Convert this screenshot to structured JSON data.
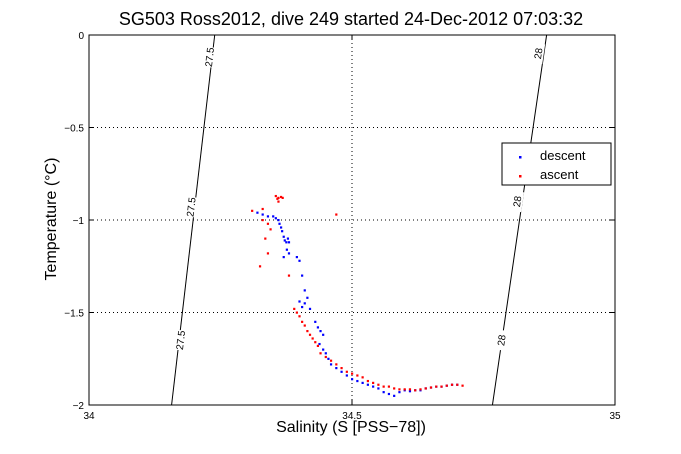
{
  "chart_data": {
    "type": "scatter",
    "title": "SG503 Ross2012, dive 249 started 24-Dec-2012 07:03:32",
    "xlabel": "Salinity (S [PSS−78])",
    "ylabel": "Temperature (°C)",
    "xlim": [
      34,
      35
    ],
    "ylim": [
      -2,
      0
    ],
    "x_ticks": [
      "34",
      "34.5",
      "35"
    ],
    "y_ticks": [
      "0",
      "−0.5",
      "−1",
      "−1.5",
      "−2"
    ],
    "x_tick_values": [
      34,
      34.5,
      35
    ],
    "y_tick_values": [
      0,
      -0.5,
      -1,
      -1.5,
      -2
    ],
    "grid": true,
    "grid_style": "dotted",
    "legend_position": "right",
    "colors": {
      "descent": "#0000ff",
      "ascent": "#ff0000",
      "contours": "#000000"
    },
    "density_contours": [
      {
        "label": "27.5",
        "points": [
          [
            34.157,
            -2
          ],
          [
            34.239,
            0
          ]
        ],
        "labels_at": [
          [
            34.175,
            -1.65
          ],
          [
            34.195,
            -0.93
          ],
          [
            34.23,
            -0.12
          ]
        ]
      },
      {
        "label": "28",
        "points": [
          [
            34.767,
            -2
          ],
          [
            34.87,
            0
          ]
        ],
        "labels_at": [
          [
            34.785,
            -1.65
          ],
          [
            34.815,
            -0.9
          ],
          [
            34.855,
            -0.1
          ]
        ]
      }
    ],
    "series": [
      {
        "name": "descent",
        "marker": "dot",
        "points": [
          [
            34.32,
            -0.96
          ],
          [
            34.33,
            -0.97
          ],
          [
            34.34,
            -0.98
          ],
          [
            34.35,
            -0.98
          ],
          [
            34.355,
            -0.99
          ],
          [
            34.36,
            -1.0
          ],
          [
            34.362,
            -1.02
          ],
          [
            34.365,
            -1.04
          ],
          [
            34.367,
            -1.06
          ],
          [
            34.37,
            -1.09
          ],
          [
            34.372,
            -1.11
          ],
          [
            34.375,
            -1.12
          ],
          [
            34.378,
            -1.1
          ],
          [
            34.38,
            -1.12
          ],
          [
            34.376,
            -1.16
          ],
          [
            34.37,
            -1.2
          ],
          [
            34.38,
            -1.18
          ],
          [
            34.395,
            -1.2
          ],
          [
            34.4,
            -1.22
          ],
          [
            34.405,
            -1.3
          ],
          [
            34.41,
            -1.38
          ],
          [
            34.4,
            -1.44
          ],
          [
            34.405,
            -1.47
          ],
          [
            34.41,
            -1.45
          ],
          [
            34.415,
            -1.42
          ],
          [
            34.42,
            -1.48
          ],
          [
            34.43,
            -1.55
          ],
          [
            34.435,
            -1.58
          ],
          [
            34.44,
            -1.6
          ],
          [
            34.445,
            -1.62
          ],
          [
            34.438,
            -1.67
          ],
          [
            34.445,
            -1.7
          ],
          [
            34.45,
            -1.72
          ],
          [
            34.455,
            -1.75
          ],
          [
            34.46,
            -1.78
          ],
          [
            34.47,
            -1.8
          ],
          [
            34.48,
            -1.82
          ],
          [
            34.49,
            -1.84
          ],
          [
            34.5,
            -1.86
          ],
          [
            34.51,
            -1.87
          ],
          [
            34.52,
            -1.88
          ],
          [
            34.53,
            -1.89
          ],
          [
            34.54,
            -1.9
          ],
          [
            34.55,
            -1.91
          ],
          [
            34.56,
            -1.93
          ],
          [
            34.57,
            -1.94
          ],
          [
            34.58,
            -1.95
          ],
          [
            34.59,
            -1.93
          ],
          [
            34.6,
            -1.92
          ],
          [
            34.61,
            -1.925
          ],
          [
            34.62,
            -1.92
          ],
          [
            34.63,
            -1.92
          ],
          [
            34.64,
            -1.91
          ],
          [
            34.65,
            -1.905
          ],
          [
            34.66,
            -1.9
          ],
          [
            34.67,
            -1.9
          ],
          [
            34.68,
            -1.895
          ],
          [
            34.69,
            -1.89
          ],
          [
            34.7,
            -1.89
          ]
        ]
      },
      {
        "name": "ascent",
        "marker": "dot",
        "points": [
          [
            34.355,
            -0.87
          ],
          [
            34.36,
            -0.88
          ],
          [
            34.365,
            -0.875
          ],
          [
            34.36,
            -0.9
          ],
          [
            34.368,
            -0.88
          ],
          [
            34.358,
            -0.885
          ],
          [
            34.33,
            -0.94
          ],
          [
            34.31,
            -0.95
          ],
          [
            34.33,
            -1.0
          ],
          [
            34.34,
            -1.02
          ],
          [
            34.345,
            -1.05
          ],
          [
            34.335,
            -1.1
          ],
          [
            34.34,
            -1.18
          ],
          [
            34.325,
            -1.25
          ],
          [
            34.47,
            -0.97
          ],
          [
            34.38,
            -1.3
          ],
          [
            34.39,
            -1.48
          ],
          [
            34.395,
            -1.5
          ],
          [
            34.4,
            -1.52
          ],
          [
            34.405,
            -1.55
          ],
          [
            34.41,
            -1.57
          ],
          [
            34.415,
            -1.6
          ],
          [
            34.42,
            -1.62
          ],
          [
            34.425,
            -1.64
          ],
          [
            34.43,
            -1.66
          ],
          [
            34.435,
            -1.68
          ],
          [
            34.44,
            -1.72
          ],
          [
            34.45,
            -1.74
          ],
          [
            34.46,
            -1.76
          ],
          [
            34.47,
            -1.78
          ],
          [
            34.48,
            -1.8
          ],
          [
            34.49,
            -1.82
          ],
          [
            34.5,
            -1.83
          ],
          [
            34.51,
            -1.84
          ],
          [
            34.52,
            -1.85
          ],
          [
            34.53,
            -1.87
          ],
          [
            34.54,
            -1.88
          ],
          [
            34.55,
            -1.89
          ],
          [
            34.56,
            -1.9
          ],
          [
            34.57,
            -1.9
          ],
          [
            34.58,
            -1.91
          ],
          [
            34.59,
            -1.915
          ],
          [
            34.6,
            -1.915
          ],
          [
            34.61,
            -1.915
          ],
          [
            34.62,
            -1.92
          ],
          [
            34.63,
            -1.915
          ],
          [
            34.64,
            -1.91
          ],
          [
            34.65,
            -1.905
          ],
          [
            34.66,
            -1.9
          ],
          [
            34.67,
            -1.9
          ],
          [
            34.68,
            -1.895
          ],
          [
            34.69,
            -1.89
          ],
          [
            34.7,
            -1.89
          ],
          [
            34.71,
            -1.895
          ]
        ]
      }
    ]
  }
}
